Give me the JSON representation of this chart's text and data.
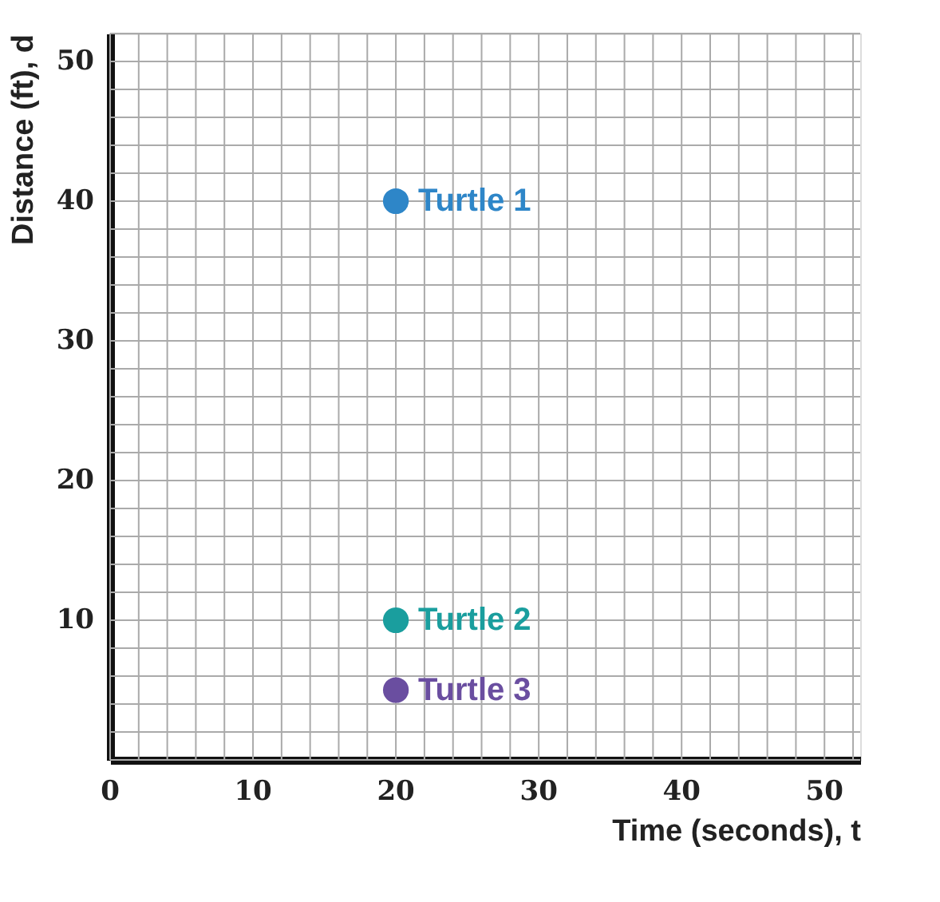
{
  "chart_data": {
    "type": "scatter",
    "xlabel": "Time (seconds), t",
    "ylabel": "Distance (ft), d",
    "xlim": [
      0,
      52.5
    ],
    "ylim": [
      0,
      52
    ],
    "xticks": [
      0,
      {
        "value": 2,
        "label": null
      },
      {
        "value": 4,
        "label": null
      },
      {
        "value": 6,
        "label": null
      },
      {
        "value": 8,
        "label": null
      },
      10,
      {
        "value": 12,
        "label": null
      },
      {
        "value": 14,
        "label": null
      },
      {
        "value": 16,
        "label": null
      },
      {
        "value": 18,
        "label": null
      },
      20,
      {
        "value": 22,
        "label": null
      },
      {
        "value": 24,
        "label": null
      },
      {
        "value": 26,
        "label": null
      },
      {
        "value": 28,
        "label": null
      },
      30,
      {
        "value": 32,
        "label": null
      },
      {
        "value": 34,
        "label": null
      },
      {
        "value": 36,
        "label": null
      },
      {
        "value": 38,
        "label": null
      },
      40,
      {
        "value": 42,
        "label": null
      },
      {
        "value": 44,
        "label": null
      },
      {
        "value": 46,
        "label": null
      },
      {
        "value": 48,
        "label": null
      },
      50,
      {
        "value": 52,
        "label": null
      }
    ],
    "yticks": [
      {
        "value": 0,
        "label": null
      },
      {
        "value": 2,
        "label": null
      },
      {
        "value": 4,
        "label": null
      },
      {
        "value": 6,
        "label": null
      },
      {
        "value": 8,
        "label": null
      },
      10,
      {
        "value": 12,
        "label": null
      },
      {
        "value": 14,
        "label": null
      },
      {
        "value": 16,
        "label": null
      },
      {
        "value": 18,
        "label": null
      },
      20,
      {
        "value": 22,
        "label": null
      },
      {
        "value": 24,
        "label": null
      },
      {
        "value": 26,
        "label": null
      },
      {
        "value": 28,
        "label": null
      },
      30,
      {
        "value": 32,
        "label": null
      },
      {
        "value": 34,
        "label": null
      },
      {
        "value": 36,
        "label": null
      },
      {
        "value": 38,
        "label": null
      },
      40,
      {
        "value": 42,
        "label": null
      },
      {
        "value": 44,
        "label": null
      },
      {
        "value": 46,
        "label": null
      },
      {
        "value": 48,
        "label": null
      },
      50,
      {
        "value": 52,
        "label": null
      }
    ],
    "grid": true,
    "marker": "circle",
    "legend": false,
    "x": [
      20
    ],
    "series": [
      {
        "name": "Turtle 1",
        "color": "#2e86c8",
        "values": [
          40
        ]
      },
      {
        "name": "Turtle 2",
        "color": "#1a9e9e",
        "values": [
          10
        ]
      },
      {
        "name": "Turtle 3",
        "color": "#6a4ea0",
        "values": [
          5
        ]
      }
    ]
  }
}
